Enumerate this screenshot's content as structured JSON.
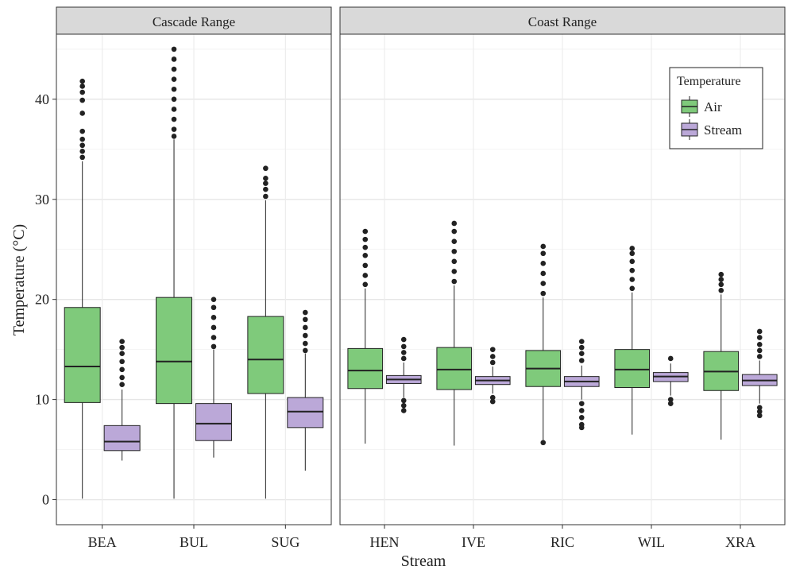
{
  "chart_data": {
    "type": "boxplot",
    "ylabel": "Temperature (°C)",
    "xlabel": "Stream",
    "ylim": [
      -2.5,
      46.5
    ],
    "y_ticks": [
      0,
      10,
      20,
      30,
      40
    ],
    "grid": true,
    "legend": {
      "title": "Temperature",
      "position": "top-right",
      "entries": [
        {
          "name": "Air",
          "color": "#7fca7b"
        },
        {
          "name": "Stream",
          "color": "#bba8d8"
        }
      ]
    },
    "panels": [
      {
        "title": "Cascade Range",
        "categories": [
          "BEA",
          "BUL",
          "SUG"
        ],
        "boxes": [
          {
            "category": "BEA",
            "series": "Air",
            "min": 0.1,
            "q1": 9.7,
            "median": 13.3,
            "q3": 19.2,
            "max": 33.8,
            "outliers": [
              34.2,
              34.8,
              35.4,
              36.0,
              36.8,
              38.6,
              39.9,
              40.7,
              41.3,
              41.8
            ]
          },
          {
            "category": "BEA",
            "series": "Stream",
            "min": 3.9,
            "q1": 4.9,
            "median": 5.8,
            "q3": 7.4,
            "max": 11.0,
            "outliers": [
              11.5,
              12.2,
              13.0,
              13.8,
              14.6,
              15.2,
              15.8
            ]
          },
          {
            "category": "BUL",
            "series": "Air",
            "min": 0.1,
            "q1": 9.6,
            "median": 13.8,
            "q3": 20.2,
            "max": 36.0,
            "outliers": [
              36.3,
              37.0,
              38.0,
              39.0,
              40.0,
              41.0,
              42.0,
              43.0,
              44.0,
              45.0
            ]
          },
          {
            "category": "BUL",
            "series": "Stream",
            "min": 4.2,
            "q1": 5.9,
            "median": 7.6,
            "q3": 9.6,
            "max": 15.0,
            "outliers": [
              15.3,
              16.2,
              17.2,
              18.2,
              19.2,
              20.0
            ]
          },
          {
            "category": "SUG",
            "series": "Air",
            "min": 0.1,
            "q1": 10.6,
            "median": 14.0,
            "q3": 18.3,
            "max": 29.9,
            "outliers": [
              30.3,
              31.0,
              31.6,
              32.1,
              33.1
            ]
          },
          {
            "category": "SUG",
            "series": "Stream",
            "min": 2.9,
            "q1": 7.2,
            "median": 8.8,
            "q3": 10.2,
            "max": 14.6,
            "outliers": [
              14.9,
              15.6,
              16.4,
              17.2,
              18.0,
              18.7
            ]
          }
        ]
      },
      {
        "title": "Coast Range",
        "categories": [
          "HEN",
          "IVE",
          "RIC",
          "WIL",
          "XRA"
        ],
        "boxes": [
          {
            "category": "HEN",
            "series": "Air",
            "min": 5.6,
            "q1": 11.1,
            "median": 12.9,
            "q3": 15.1,
            "max": 21.1,
            "outliers": [
              21.5,
              22.4,
              23.4,
              24.4,
              25.2,
              26.0,
              26.8
            ]
          },
          {
            "category": "HEN",
            "series": "Stream",
            "min": 10.2,
            "q1": 11.6,
            "median": 12.0,
            "q3": 12.4,
            "max": 13.7,
            "outliers": [
              14.1,
              14.7,
              15.3,
              16.0,
              9.9,
              9.4,
              8.9
            ]
          },
          {
            "category": "IVE",
            "series": "Air",
            "min": 5.4,
            "q1": 11.0,
            "median": 13.0,
            "q3": 15.2,
            "max": 21.4,
            "outliers": [
              21.8,
              22.8,
              23.8,
              24.8,
              25.8,
              26.8,
              27.6
            ]
          },
          {
            "category": "IVE",
            "series": "Stream",
            "min": 10.6,
            "q1": 11.5,
            "median": 11.9,
            "q3": 12.3,
            "max": 13.3,
            "outliers": [
              13.7,
              14.3,
              15.0,
              10.2,
              9.8
            ]
          },
          {
            "category": "RIC",
            "series": "Air",
            "min": 5.8,
            "q1": 11.3,
            "median": 13.1,
            "q3": 14.9,
            "max": 20.2,
            "outliers": [
              20.6,
              21.6,
              22.6,
              23.6,
              24.6,
              25.3,
              5.7
            ]
          },
          {
            "category": "RIC",
            "series": "Stream",
            "min": 10.0,
            "q1": 11.3,
            "median": 11.8,
            "q3": 12.3,
            "max": 13.4,
            "outliers": [
              13.9,
              14.6,
              15.2,
              15.8,
              9.6,
              8.9,
              8.2,
              7.5,
              7.2
            ]
          },
          {
            "category": "WIL",
            "series": "Air",
            "min": 6.5,
            "q1": 11.2,
            "median": 13.0,
            "q3": 15.0,
            "max": 20.7,
            "outliers": [
              21.1,
              22.0,
              22.9,
              23.8,
              24.6,
              25.1
            ]
          },
          {
            "category": "WIL",
            "series": "Stream",
            "min": 10.4,
            "q1": 11.8,
            "median": 12.3,
            "q3": 12.7,
            "max": 13.6,
            "outliers": [
              14.1,
              10.0,
              9.6
            ]
          },
          {
            "category": "XRA",
            "series": "Air",
            "min": 6.0,
            "q1": 10.9,
            "median": 12.8,
            "q3": 14.8,
            "max": 20.5,
            "outliers": [
              20.9,
              21.5,
              22.0,
              22.5
            ]
          },
          {
            "category": "XRA",
            "series": "Stream",
            "min": 9.6,
            "q1": 11.4,
            "median": 11.9,
            "q3": 12.5,
            "max": 13.9,
            "outliers": [
              14.3,
              14.9,
              15.5,
              16.2,
              16.8,
              9.2,
              8.8,
              8.4
            ]
          }
        ]
      }
    ]
  }
}
